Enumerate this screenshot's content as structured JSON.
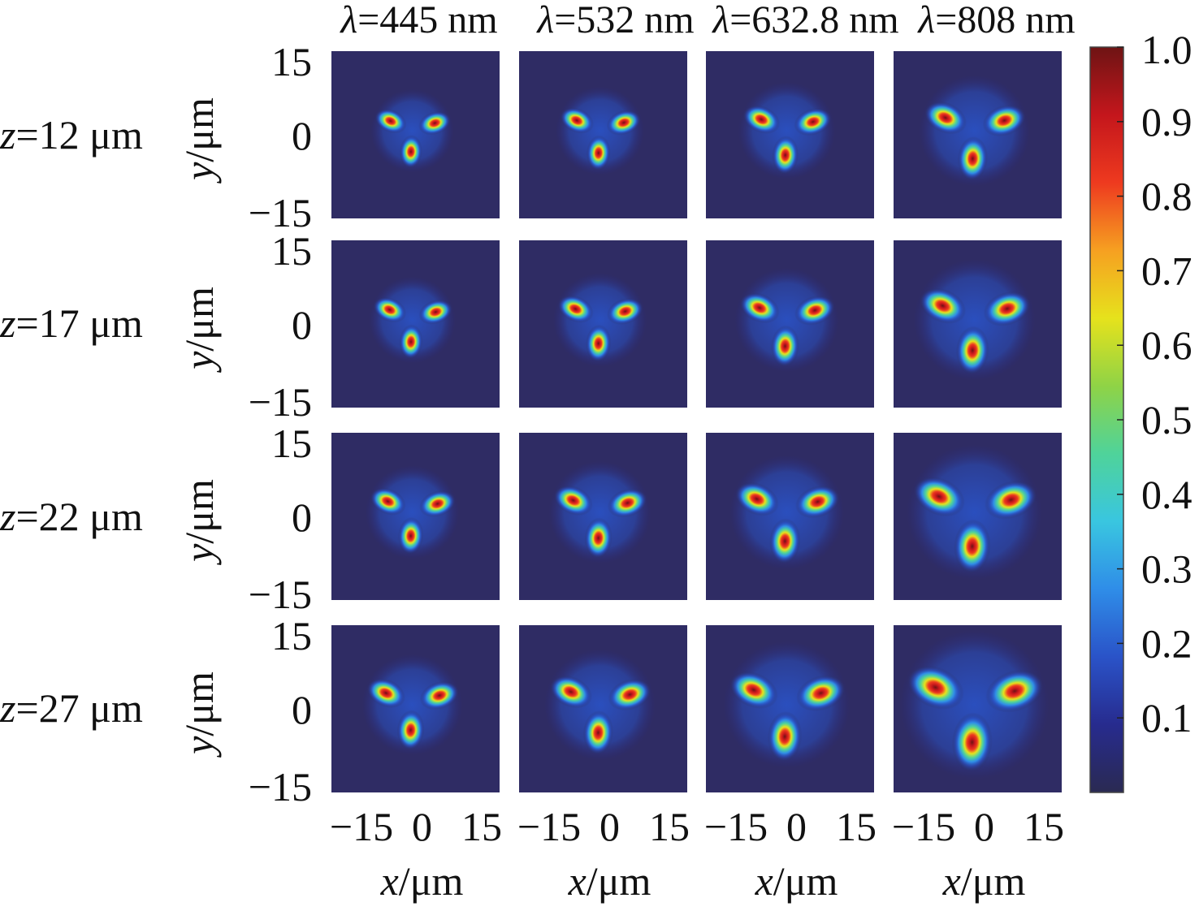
{
  "chart_data": {
    "type": "heatmap",
    "columns": [
      {
        "label_var": "λ",
        "label_value": "=445 nm"
      },
      {
        "label_var": "λ",
        "label_value": "=532 nm"
      },
      {
        "label_var": "λ",
        "label_value": "=632.8 nm"
      },
      {
        "label_var": "λ",
        "label_value": "=808 nm"
      }
    ],
    "rows": [
      {
        "label_var": "z",
        "label_value": "=12 μm"
      },
      {
        "label_var": "z",
        "label_value": "=17 μm"
      },
      {
        "label_var": "z",
        "label_value": "=22 μm"
      },
      {
        "label_var": "z",
        "label_value": "=27 μm"
      }
    ],
    "xlabel": {
      "var": "x",
      "unit": "/μm"
    },
    "ylabel": {
      "var": "y",
      "unit": "/μm"
    },
    "xticks": [
      "−15",
      "0",
      "15"
    ],
    "yticks": [
      "15",
      "0",
      "−15"
    ],
    "xlim": [
      -15,
      15
    ],
    "ylim": [
      -15,
      15
    ],
    "colorbar": {
      "ticks": [
        "1.0",
        "0.9",
        "0.8",
        "0.7",
        "0.6",
        "0.5",
        "0.4",
        "0.3",
        "0.2",
        "0.1"
      ],
      "range": [
        0,
        1
      ],
      "colors": [
        "#2a2a52",
        "#272b8e",
        "#2a53c8",
        "#2f8de8",
        "#39c6e0",
        "#4fd39a",
        "#8fd346",
        "#e6e21c",
        "#f6a021",
        "#ee3a1f",
        "#c4161c",
        "#6e1414"
      ]
    },
    "background_color": "#2f2c64",
    "lobes_description_note": "",
    "lobes": [
      {
        "dx": -0.85,
        "dy": 0.38
      },
      {
        "dx": 0.88,
        "dy": 0.3
      },
      {
        "dx": -0.05,
        "dy": -0.82
      }
    ],
    "panels": [
      [
        {
          "spread": 4.8,
          "peak": 1.0
        },
        {
          "spread": 5.1,
          "peak": 1.0
        },
        {
          "spread": 5.6,
          "peak": 1.0
        },
        {
          "spread": 6.4,
          "peak": 1.0
        }
      ],
      [
        {
          "spread": 5.0,
          "peak": 1.0
        },
        {
          "spread": 5.4,
          "peak": 1.0
        },
        {
          "spread": 6.0,
          "peak": 1.0
        },
        {
          "spread": 7.0,
          "peak": 1.0
        }
      ],
      [
        {
          "spread": 5.4,
          "peak": 1.0
        },
        {
          "spread": 5.9,
          "peak": 1.0
        },
        {
          "spread": 6.6,
          "peak": 1.0
        },
        {
          "spread": 7.8,
          "peak": 1.0
        }
      ],
      [
        {
          "spread": 5.8,
          "peak": 1.0
        },
        {
          "spread": 6.4,
          "peak": 1.0
        },
        {
          "spread": 7.3,
          "peak": 1.0
        },
        {
          "spread": 8.6,
          "peak": 1.0
        }
      ]
    ]
  }
}
